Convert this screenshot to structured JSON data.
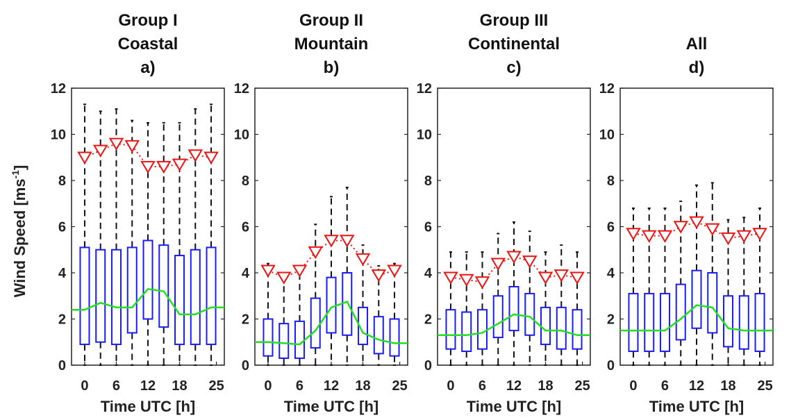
{
  "figure": {
    "ylabel_main": "Wind Speed [ms",
    "ylabel_sup": "-1",
    "ylabel_close": "]"
  },
  "chart_data": [
    {
      "type": "box",
      "title_lines": [
        "Group I",
        "Coastal",
        "a)"
      ],
      "xlabel": "Time UTC [h]",
      "xticks": [
        0,
        6,
        12,
        18,
        25
      ],
      "ylim": [
        0,
        12
      ],
      "yticks": [
        0,
        2,
        4,
        6,
        8,
        10,
        12
      ],
      "x": [
        0,
        3,
        6,
        9,
        12,
        15,
        18,
        21,
        24
      ],
      "boxes": {
        "q1": [
          0.9,
          1.0,
          0.9,
          1.4,
          2.0,
          1.65,
          0.9,
          0.9,
          0.9
        ],
        "q3": [
          5.1,
          5.0,
          5.0,
          5.1,
          5.4,
          5.2,
          4.75,
          5.0,
          5.1
        ],
        "whisker_low": [
          0,
          0,
          0,
          0,
          0,
          0,
          0,
          0,
          0
        ],
        "whisker_high": [
          11.3,
          11.0,
          11.1,
          10.6,
          10.5,
          10.5,
          10.5,
          11.1,
          11.3
        ]
      },
      "median_line": [
        2.4,
        2.7,
        2.5,
        2.5,
        3.3,
        3.2,
        2.2,
        2.2,
        2.5
      ],
      "markers": [
        9.0,
        9.3,
        9.6,
        9.5,
        8.6,
        8.6,
        8.7,
        9.1,
        9.0
      ]
    },
    {
      "type": "box",
      "title_lines": [
        "Group II",
        "Mountain",
        "b)"
      ],
      "xlabel": "Time UTC [h]",
      "xticks": [
        0,
        6,
        12,
        18,
        25
      ],
      "ylim": [
        0,
        12
      ],
      "yticks": [
        0,
        2,
        4,
        6,
        8,
        10,
        12
      ],
      "x": [
        0,
        3,
        6,
        9,
        12,
        15,
        18,
        21,
        24
      ],
      "boxes": {
        "q1": [
          0.4,
          0.3,
          0.3,
          0.75,
          1.4,
          1.3,
          0.9,
          0.5,
          0.4
        ],
        "q3": [
          2.0,
          1.8,
          1.9,
          2.9,
          3.8,
          4.0,
          2.5,
          2.1,
          2.0
        ],
        "whisker_low": [
          0,
          0,
          0,
          0,
          0,
          0,
          0,
          0,
          0
        ],
        "whisker_high": [
          4.4,
          4.0,
          4.3,
          6.1,
          7.3,
          7.7,
          5.2,
          4.3,
          4.4
        ]
      },
      "median_line": [
        1.0,
        0.95,
        0.9,
        1.5,
        2.5,
        2.75,
        1.4,
        1.1,
        0.95
      ],
      "markers": [
        4.1,
        3.8,
        4.1,
        4.9,
        5.4,
        5.4,
        4.6,
        3.9,
        4.1
      ]
    },
    {
      "type": "box",
      "title_lines": [
        "Group III",
        "Continental",
        "c)"
      ],
      "xlabel": "Time UTC [h]",
      "xticks": [
        0,
        6,
        12,
        18,
        25
      ],
      "ylim": [
        0,
        12
      ],
      "yticks": [
        0,
        2,
        4,
        6,
        8,
        10,
        12
      ],
      "x": [
        0,
        3,
        6,
        9,
        12,
        15,
        18,
        21,
        24
      ],
      "boxes": {
        "q1": [
          0.7,
          0.6,
          0.7,
          1.2,
          1.5,
          1.3,
          0.9,
          0.7,
          0.7
        ],
        "q3": [
          2.4,
          2.3,
          2.4,
          3.0,
          3.4,
          3.1,
          2.5,
          2.5,
          2.4
        ],
        "whisker_low": [
          0,
          0,
          0,
          0,
          0,
          0,
          0,
          0,
          0
        ],
        "whisker_high": [
          4.9,
          4.9,
          4.9,
          5.7,
          6.2,
          5.8,
          4.9,
          5.2,
          4.9
        ]
      },
      "median_line": [
        1.3,
        1.3,
        1.4,
        1.8,
        2.2,
        2.1,
        1.5,
        1.5,
        1.3
      ],
      "markers": [
        3.8,
        3.7,
        3.6,
        4.4,
        4.7,
        4.5,
        3.8,
        3.9,
        3.8
      ]
    },
    {
      "type": "box",
      "title_lines": [
        "All",
        "d)"
      ],
      "xlabel": "Time UTC [h]",
      "xticks": [
        0,
        6,
        12,
        18,
        25
      ],
      "ylim": [
        0,
        12
      ],
      "yticks": [
        0,
        2,
        4,
        6,
        8,
        10,
        12
      ],
      "x": [
        0,
        3,
        6,
        9,
        12,
        15,
        18,
        21,
        24
      ],
      "boxes": {
        "q1": [
          0.6,
          0.6,
          0.6,
          1.1,
          1.6,
          1.4,
          0.8,
          0.7,
          0.6
        ],
        "q3": [
          3.1,
          3.1,
          3.1,
          3.5,
          4.1,
          4.0,
          3.0,
          3.0,
          3.1
        ],
        "whisker_low": [
          0,
          0,
          0,
          0,
          0,
          0,
          0,
          0,
          0
        ],
        "whisker_high": [
          6.8,
          6.8,
          6.8,
          7.1,
          7.8,
          7.9,
          6.3,
          6.4,
          6.8
        ]
      },
      "median_line": [
        1.5,
        1.5,
        1.5,
        2.0,
        2.6,
        2.5,
        1.6,
        1.5,
        1.5
      ],
      "markers": [
        5.7,
        5.6,
        5.6,
        6.0,
        6.2,
        5.9,
        5.5,
        5.6,
        5.7
      ]
    }
  ]
}
